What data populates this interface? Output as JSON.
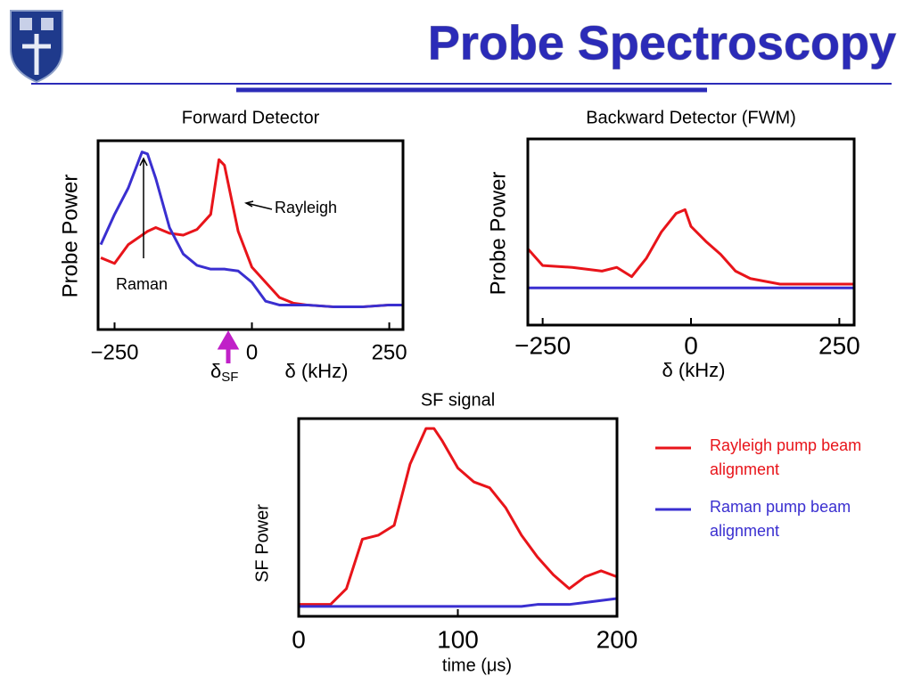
{
  "title": "Probe Spectroscopy",
  "chart_data": [
    {
      "type": "line",
      "title": "Forward Detector",
      "x_label": "δ (kHz)",
      "y_label": "Probe Power",
      "xlim": [
        -280,
        275
      ],
      "ylim": [
        0,
        1
      ],
      "xticks": [
        {
          "value": -250,
          "label": "−250"
        },
        0,
        250
      ],
      "x": [
        -275,
        -250,
        -225,
        -200,
        -190,
        -175,
        -150,
        -125,
        -100,
        -75,
        -60,
        -50,
        -25,
        0,
        25,
        50,
        75,
        100,
        150,
        200,
        250,
        275
      ],
      "series": [
        {
          "color": "#e8141a",
          "values": [
            0.38,
            0.35,
            0.45,
            0.5,
            0.52,
            0.54,
            0.51,
            0.5,
            0.53,
            0.61,
            0.9,
            0.87,
            0.52,
            0.33,
            0.25,
            0.17,
            0.14,
            0.13,
            0.12,
            0.12,
            0.13,
            0.13
          ]
        },
        {
          "color": "#3a2fd0",
          "values": [
            0.45,
            0.61,
            0.75,
            0.94,
            0.93,
            0.8,
            0.54,
            0.4,
            0.34,
            0.32,
            0.32,
            0.32,
            0.31,
            0.25,
            0.15,
            0.13,
            0.13,
            0.13,
            0.12,
            0.12,
            0.13,
            0.13
          ]
        }
      ],
      "annotations": [
        {
          "text": "Rayleigh"
        },
        {
          "text": "Raman"
        },
        {
          "text": "δ",
          "subscript": "SF"
        }
      ]
    },
    {
      "type": "line",
      "title": "Backward Detector (FWM)",
      "x_label": "δ (kHz)",
      "y_label": "Probe Power",
      "xlim": [
        -275,
        275
      ],
      "ylim": [
        0,
        1
      ],
      "xticks": [
        {
          "value": -250,
          "label": "−250"
        },
        0,
        250
      ],
      "x": [
        -275,
        -250,
        -200,
        -150,
        -125,
        -100,
        -75,
        -50,
        -25,
        -10,
        0,
        25,
        50,
        75,
        100,
        150,
        200,
        250,
        275
      ],
      "series": [
        {
          "color": "#e8141a",
          "values": [
            0.41,
            0.32,
            0.31,
            0.29,
            0.31,
            0.26,
            0.36,
            0.5,
            0.6,
            0.62,
            0.53,
            0.45,
            0.38,
            0.29,
            0.25,
            0.22,
            0.22,
            0.22,
            0.22
          ]
        },
        {
          "color": "#3a2fd0",
          "values": [
            0.2,
            0.2,
            0.2,
            0.2,
            0.2,
            0.2,
            0.2,
            0.2,
            0.2,
            0.2,
            0.2,
            0.2,
            0.2,
            0.2,
            0.2,
            0.2,
            0.2,
            0.2,
            0.2
          ]
        }
      ]
    },
    {
      "type": "line",
      "title": "SF signal",
      "x_label": "time (μs)",
      "y_label": "SF Power",
      "xlim": [
        0,
        200
      ],
      "ylim": [
        0,
        1
      ],
      "xticks": [
        0,
        100,
        200
      ],
      "x": [
        0,
        20,
        30,
        40,
        50,
        60,
        70,
        80,
        85,
        90,
        100,
        110,
        120,
        130,
        140,
        150,
        160,
        170,
        180,
        190,
        200
      ],
      "series": [
        {
          "name": "Rayleigh pump beam alignment",
          "color": "#e8141a",
          "values": [
            0.06,
            0.06,
            0.14,
            0.39,
            0.41,
            0.46,
            0.77,
            0.95,
            0.95,
            0.89,
            0.75,
            0.68,
            0.65,
            0.55,
            0.41,
            0.3,
            0.21,
            0.14,
            0.2,
            0.23,
            0.2
          ]
        },
        {
          "name": "Raman pump beam alignment",
          "color": "#3a2fd0",
          "values": [
            0.05,
            0.05,
            0.05,
            0.05,
            0.05,
            0.05,
            0.05,
            0.05,
            0.05,
            0.05,
            0.05,
            0.05,
            0.05,
            0.05,
            0.05,
            0.06,
            0.06,
            0.06,
            0.07,
            0.08,
            0.09
          ]
        }
      ]
    }
  ]
}
